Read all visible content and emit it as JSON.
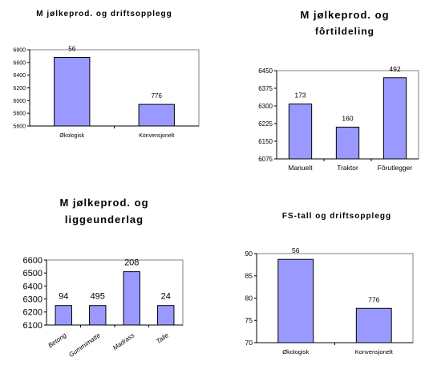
{
  "chart_data": [
    {
      "type": "bar",
      "title": "M jølkeprod. og driftsopplegg",
      "categories": [
        "Økologisk",
        "Konvensjonelt"
      ],
      "values": [
        6680,
        5940
      ],
      "data_labels": [
        "56",
        "776"
      ],
      "ylim": [
        5600,
        6800
      ],
      "yticks": [
        "5600",
        "5800",
        "6000",
        "6200",
        "6400",
        "6600",
        "6800"
      ],
      "bar_color": "#9999ff",
      "grid": false,
      "legend": "none"
    },
    {
      "type": "bar",
      "title_lines": [
        "M jølkeprod. og",
        "fôrtildeling"
      ],
      "categories": [
        "Manuelt",
        "Traktor",
        "Fôrutlegger"
      ],
      "values": [
        6308,
        6210,
        6420
      ],
      "data_labels": [
        "173",
        "160",
        "492"
      ],
      "ylim": [
        6075,
        6450
      ],
      "yticks": [
        "6075",
        "6150",
        "6225",
        "6300",
        "6375",
        "6450"
      ],
      "bar_color": "#9999ff",
      "grid": false,
      "legend": "none"
    },
    {
      "type": "bar",
      "title_lines": [
        "M jølkeprod. og",
        "liggeunderlag"
      ],
      "categories": [
        "Betong",
        "Gummimatte",
        "Madrass",
        "Talle"
      ],
      "values": [
        6250,
        6250,
        6510,
        6250
      ],
      "data_labels": [
        "94",
        "495",
        "208",
        "24"
      ],
      "ylim": [
        6100,
        6600
      ],
      "yticks": [
        "6100",
        "6200",
        "6300",
        "6400",
        "6500",
        "6600"
      ],
      "bar_color": "#9999ff",
      "grid": false,
      "legend": "none"
    },
    {
      "type": "bar",
      "title": "FS-tall og driftsopplegg",
      "categories": [
        "Økologisk",
        "Konvensjonelt"
      ],
      "values": [
        88.7,
        77.7
      ],
      "data_labels": [
        "56",
        "776"
      ],
      "ylim": [
        70,
        90
      ],
      "yticks": [
        "70",
        "75",
        "80",
        "85",
        "90"
      ],
      "bar_color": "#9999ff",
      "grid": false,
      "legend": "none"
    }
  ]
}
